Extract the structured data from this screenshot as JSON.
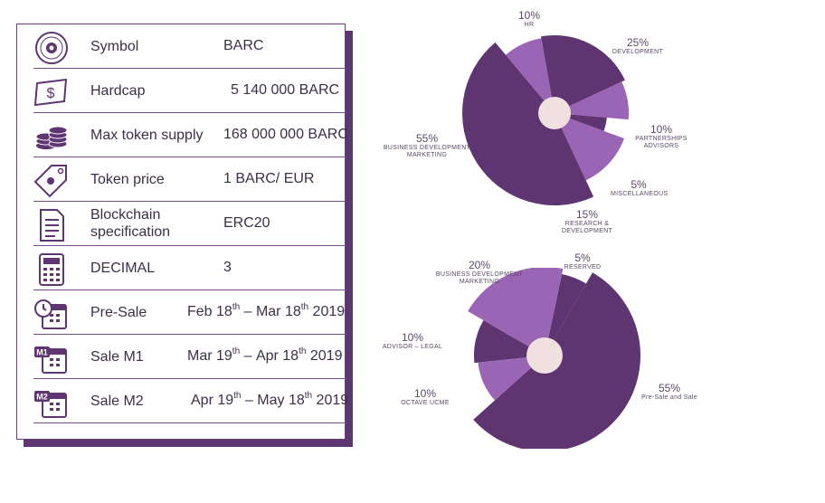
{
  "rows": [
    {
      "label": "Symbol",
      "value": "BARC",
      "icon": "seal-icon"
    },
    {
      "label": "Hardcap",
      "value": "5 140 000 BARC",
      "icon": "banknote-icon"
    },
    {
      "label": "Max token supply",
      "value": "168 000 000 BARC",
      "icon": "coin-stack-icon"
    },
    {
      "label": "Token price",
      "value": "1 BARC/ EUR",
      "icon": "price-tag-icon"
    },
    {
      "label": "Blockchain specification",
      "value": "ERC20",
      "icon": "document-icon"
    },
    {
      "label": "DECIMAL",
      "value": "3",
      "icon": "calculator-icon"
    },
    {
      "label": "Pre-Sale",
      "from_prefix": "Feb 18",
      "from_sup": "th",
      "dash": " – ",
      "to_prefix": "Mar 18",
      "to_sup": "th",
      "year": " 2019",
      "icon": "calendar-clock-icon"
    },
    {
      "label": "Sale M1",
      "from_prefix": "Mar 19",
      "from_sup": "th",
      "dash": " – ",
      "to_prefix": "Apr 18",
      "to_sup": "th",
      "year": " 2019",
      "icon": "calendar-m1-icon"
    },
    {
      "label": "Sale M2",
      "from_prefix": "Apr 19",
      "from_sup": "th",
      "dash": " – ",
      "to_prefix": "May 18",
      "to_sup": "th",
      "year": " 2019",
      "icon": "calendar-m2-icon"
    }
  ],
  "colors": {
    "dark": "#5e3570",
    "light": "#9b65b5",
    "center": "#f0e0df",
    "text": "#3c2f48"
  },
  "chart_data": [
    {
      "type": "pie",
      "slices": [
        {
          "pct": "10%",
          "value": 10,
          "label": "HR",
          "tone": "light"
        },
        {
          "pct": "25%",
          "value": 25,
          "label": "DEVELOPMENT",
          "tone": "dark"
        },
        {
          "pct": "10%",
          "value": 10,
          "label": "PARTNERSHIPS ADVISORS",
          "tone": "light"
        },
        {
          "pct": "5%",
          "value": 5,
          "label": "MISCELLANEOUS",
          "tone": "dark"
        },
        {
          "pct": "15%",
          "value": 15,
          "label": "RESEARCH & DEVELOPMENT",
          "tone": "light"
        },
        {
          "pct": "55%",
          "value": 55,
          "label": "BUSINESS DEVELOPMENT MARKETING",
          "tone": "dark"
        }
      ]
    },
    {
      "type": "pie",
      "slices": [
        {
          "pct": "5%",
          "value": 5,
          "label": "RESERVED",
          "tone": "dark"
        },
        {
          "pct": "55%",
          "value": 55,
          "label": "Pre-Sale and Sale",
          "tone": "dark"
        },
        {
          "pct": "10%",
          "value": 10,
          "label": "OCTAVE UCME",
          "tone": "light"
        },
        {
          "pct": "10%",
          "value": 10,
          "label": "ADVISOR – LEGAL",
          "tone": "dark"
        },
        {
          "pct": "20%",
          "value": 20,
          "label": "BUSINESS DEVELOPMENT MARKETING",
          "tone": "light"
        }
      ]
    }
  ]
}
